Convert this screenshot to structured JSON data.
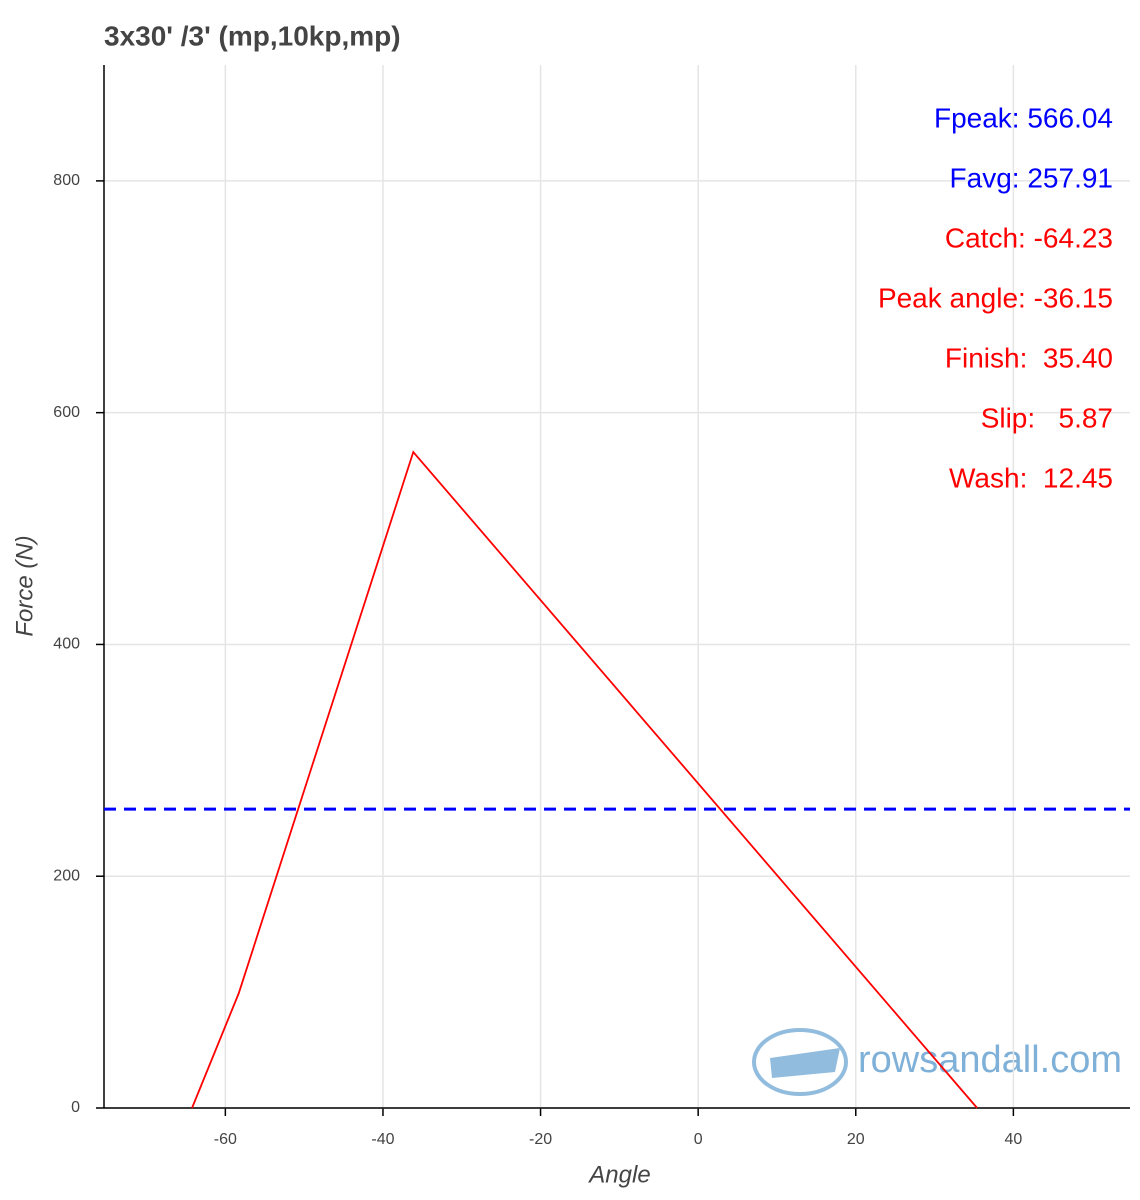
{
  "chart_data": {
    "type": "line",
    "title": "3x30' /3' (mp,10kp,mp)",
    "x_label": "Angle",
    "y_label": "Force (N)",
    "x": [
      -64.23,
      -58.3,
      -36.15,
      35.4
    ],
    "series": [
      {
        "color": "#ff0000",
        "values": [
          0,
          99,
          566.04,
          0
        ]
      }
    ],
    "hlines": [
      {
        "value": 257.91,
        "color": "#0000ff",
        "dashed": true
      }
    ],
    "annotations": [
      {
        "text": "Fpeak: 566.04",
        "color": "#0000ff"
      },
      {
        "text": "Favg: 257.91",
        "color": "#0000ff"
      },
      {
        "text": "Catch: -64.23",
        "color": "#ff0000"
      },
      {
        "text": "Peak angle: -36.15",
        "color": "#ff0000"
      },
      {
        "text": "Finish:  35.40",
        "color": "#ff0000"
      },
      {
        "text": "Slip:   5.87",
        "color": "#ff0000"
      },
      {
        "text": "Wash:  12.45",
        "color": "#ff0000"
      }
    ],
    "watermark": "rowsandall.com",
    "xlim": [
      -75.4,
      54.8
    ],
    "ylim": [
      0,
      900
    ],
    "xticks": [
      -60,
      -40,
      -20,
      0,
      20,
      40
    ],
    "yticks": [
      0,
      200,
      400,
      600,
      800
    ],
    "grid": true
  }
}
